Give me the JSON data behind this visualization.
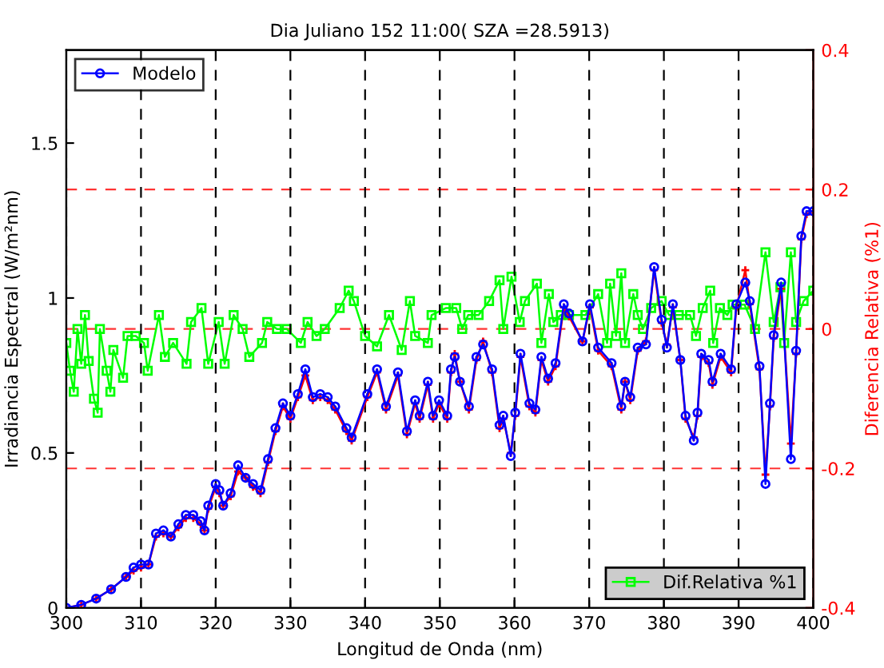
{
  "chart_data": {
    "type": "line",
    "title": "Dia Juliano 152 11:00( SZA =28.5913)",
    "xlabel": "Longitud de Onda (nm)",
    "ylabel": "Irradiancia Espectral (W/m²nm)",
    "y2label": "Diferencia Relativa (%1)",
    "xlim": [
      300,
      400
    ],
    "xticks": [
      300,
      310,
      320,
      330,
      340,
      350,
      360,
      370,
      380,
      390,
      400
    ],
    "ylim": [
      0,
      1.8
    ],
    "yticks": [
      0,
      0.5,
      1,
      1.5
    ],
    "y2lim": [
      -0.4,
      0.4
    ],
    "y2ticks": [
      -0.4,
      -0.2,
      0,
      0.2,
      0.4
    ],
    "grid": true,
    "legend": "top left",
    "series": [
      {
        "color": "#ff0000",
        "marker": "cross",
        "x": [
          300,
          302,
          304,
          306,
          308,
          309,
          310,
          311,
          312,
          313,
          314,
          315,
          316,
          317,
          318,
          318.5,
          319,
          320,
          320.5,
          321,
          322,
          323,
          324,
          325,
          326,
          327,
          328,
          329,
          330,
          331,
          332,
          333,
          334,
          335,
          336,
          337.5,
          338.2,
          340.3,
          341.6,
          342.8,
          344.4,
          345.6,
          346.7,
          347.3,
          348.4,
          349.1,
          349.9,
          351,
          351.5,
          352,
          352.7,
          353.9,
          354.9,
          355.8,
          357,
          358,
          358.5,
          359.5,
          360.1,
          360.8,
          362,
          362.8,
          363.6,
          364.5,
          365.5,
          366.6,
          367.3,
          369.1,
          370.1,
          371.2,
          373,
          374.3,
          374.8,
          375.5,
          376.5,
          377.6,
          378.7,
          379.7,
          380.4,
          381.2,
          382.2,
          382.9,
          384,
          384.5,
          385,
          386,
          386.5,
          387.6,
          389,
          389.7,
          390.9,
          391.5,
          392.8,
          393.6,
          394.2,
          394.7,
          395.7,
          397,
          397.7,
          398.4,
          399.1,
          400
        ],
        "values": [
          0.0,
          0.01,
          0.03,
          0.06,
          0.1,
          0.12,
          0.13,
          0.14,
          0.23,
          0.24,
          0.23,
          0.26,
          0.29,
          0.29,
          0.27,
          0.25,
          0.32,
          0.39,
          0.37,
          0.33,
          0.36,
          0.44,
          0.42,
          0.39,
          0.37,
          0.47,
          0.57,
          0.65,
          0.61,
          0.68,
          0.75,
          0.67,
          0.68,
          0.67,
          0.64,
          0.57,
          0.54,
          0.68,
          0.76,
          0.64,
          0.75,
          0.56,
          0.66,
          0.61,
          0.72,
          0.61,
          0.66,
          0.61,
          0.76,
          0.82,
          0.73,
          0.64,
          0.8,
          0.86,
          0.76,
          0.58,
          0.61,
          0.5,
          0.62,
          0.81,
          0.65,
          0.63,
          0.8,
          0.73,
          0.78,
          0.97,
          0.94,
          0.86,
          0.97,
          0.83,
          0.78,
          0.64,
          0.73,
          0.67,
          0.83,
          0.86,
          1.09,
          0.92,
          0.85,
          0.97,
          0.8,
          0.61,
          0.55,
          0.62,
          0.81,
          0.79,
          0.72,
          0.81,
          0.76,
          0.97,
          1.09,
          0.98,
          0.77,
          0.43,
          0.65,
          0.87,
          1.03,
          0.53,
          0.82,
          1.19,
          1.27,
          1.28
        ]
      },
      {
        "name": "Modelo",
        "color": "#0000ff",
        "marker": "circle",
        "x": [
          300,
          302,
          304,
          306,
          308,
          309,
          310,
          311,
          312,
          313,
          314,
          315,
          316,
          317,
          318,
          318.5,
          319,
          320,
          320.5,
          321,
          322,
          323,
          324,
          325,
          326,
          327,
          328,
          329,
          330,
          331,
          332,
          333,
          334,
          335,
          336,
          337.5,
          338.2,
          340.3,
          341.6,
          342.8,
          344.4,
          345.6,
          346.7,
          347.3,
          348.4,
          349.1,
          349.9,
          351,
          351.5,
          352,
          352.7,
          353.9,
          354.9,
          355.8,
          357,
          358,
          358.5,
          359.5,
          360.1,
          360.8,
          362,
          362.8,
          363.6,
          364.5,
          365.5,
          366.6,
          367.3,
          369.1,
          370.1,
          371.2,
          373,
          374.3,
          374.8,
          375.5,
          376.5,
          377.6,
          378.7,
          379.7,
          380.4,
          381.2,
          382.2,
          382.9,
          384,
          384.5,
          385,
          386,
          386.5,
          387.6,
          389,
          389.7,
          390.9,
          391.5,
          392.8,
          393.6,
          394.2,
          394.7,
          395.7,
          397,
          397.7,
          398.4,
          399.1,
          400
        ],
        "values": [
          0.0,
          0.01,
          0.03,
          0.06,
          0.1,
          0.13,
          0.14,
          0.14,
          0.24,
          0.25,
          0.23,
          0.27,
          0.3,
          0.3,
          0.28,
          0.25,
          0.33,
          0.4,
          0.38,
          0.33,
          0.37,
          0.46,
          0.42,
          0.4,
          0.38,
          0.48,
          0.58,
          0.66,
          0.62,
          0.69,
          0.77,
          0.68,
          0.69,
          0.68,
          0.65,
          0.58,
          0.55,
          0.69,
          0.77,
          0.65,
          0.76,
          0.57,
          0.67,
          0.62,
          0.73,
          0.62,
          0.67,
          0.62,
          0.77,
          0.81,
          0.73,
          0.65,
          0.81,
          0.85,
          0.77,
          0.59,
          0.62,
          0.49,
          0.63,
          0.82,
          0.66,
          0.64,
          0.81,
          0.74,
          0.79,
          0.98,
          0.95,
          0.86,
          0.98,
          0.84,
          0.79,
          0.65,
          0.73,
          0.68,
          0.84,
          0.85,
          1.1,
          0.93,
          0.84,
          0.98,
          0.8,
          0.62,
          0.54,
          0.63,
          0.82,
          0.8,
          0.73,
          0.82,
          0.77,
          0.98,
          1.05,
          0.99,
          0.78,
          0.4,
          0.66,
          0.88,
          1.05,
          0.48,
          0.83,
          1.2,
          1.28,
          1.28
        ]
      },
      {
        "name": "Dif.Relativa %1",
        "color": "#00ff00",
        "marker": "square",
        "axis": "y2",
        "x": [
          300,
          300.5,
          301,
          301.5,
          302,
          302.5,
          303,
          303.7,
          304.2,
          304.5,
          305.4,
          305.9,
          306.3,
          307.6,
          308.2,
          309.3,
          310.4,
          310.9,
          312.4,
          313.2,
          314.3,
          316.1,
          316.7,
          318.1,
          319,
          320.4,
          321.2,
          322.4,
          323.6,
          324.5,
          326.2,
          326.9,
          328.2,
          329.5,
          331.4,
          332.3,
          333.5,
          334.6,
          336.6,
          337.8,
          338.5,
          340,
          341.6,
          343.2,
          344.9,
          346,
          346.7,
          348.4,
          348.9,
          350.8,
          352.2,
          353,
          353.8,
          355.2,
          356.6,
          358,
          358.5,
          359.6,
          360.7,
          361.4,
          363,
          363.6,
          364.6,
          365.2,
          366.2,
          367.3,
          369.5,
          371.2,
          372.4,
          372.8,
          373.6,
          374.3,
          374.8,
          375.9,
          376.5,
          377.2,
          378.3,
          379.7,
          380.7,
          382,
          383.5,
          384.3,
          385.2,
          386.2,
          386.6,
          387.5,
          388.5,
          389.2,
          390.8,
          392.2,
          393.6,
          394.7,
          395.6,
          396.1,
          397,
          397.7,
          398.7,
          400
        ],
        "values": [
          -0.02,
          -0.06,
          -0.09,
          0.0,
          -0.05,
          0.02,
          -0.046,
          -0.1,
          -0.12,
          0.0,
          -0.06,
          -0.09,
          -0.03,
          -0.07,
          -0.01,
          -0.01,
          -0.02,
          -0.06,
          0.02,
          -0.04,
          -0.02,
          -0.05,
          0.01,
          0.03,
          -0.05,
          0.01,
          -0.05,
          0.02,
          0.0,
          -0.04,
          -0.02,
          0.01,
          0.0,
          0.0,
          -0.02,
          0.01,
          -0.01,
          0.0,
          0.03,
          0.055,
          0.04,
          -0.01,
          -0.025,
          0.02,
          -0.03,
          0.04,
          -0.01,
          -0.02,
          0.02,
          0.03,
          0.03,
          0.0,
          0.02,
          0.02,
          0.04,
          0.07,
          0.0,
          0.075,
          0.01,
          0.04,
          0.065,
          -0.02,
          0.05,
          0.01,
          0.02,
          0.02,
          0.02,
          0.05,
          -0.02,
          0.065,
          -0.01,
          0.08,
          -0.02,
          0.05,
          0.02,
          0.0,
          0.03,
          0.04,
          0.02,
          0.02,
          0.02,
          -0.01,
          0.03,
          0.055,
          -0.02,
          0.03,
          0.02,
          0.035,
          0.035,
          0.0,
          0.11,
          0.01,
          0.06,
          -0.02,
          0.11,
          0.01,
          0.04,
          0.055
        ]
      }
    ]
  }
}
